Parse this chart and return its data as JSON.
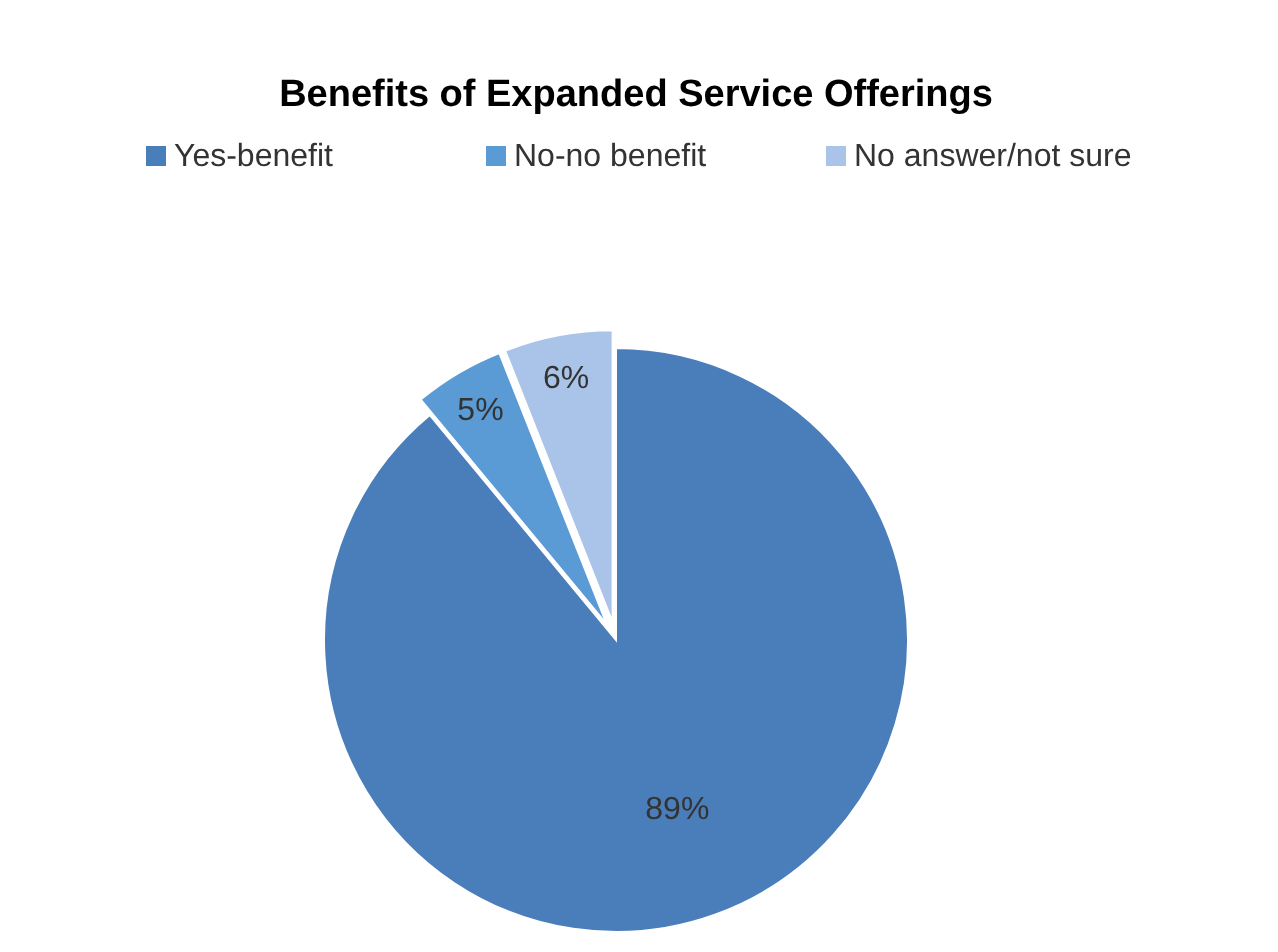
{
  "chart_data": {
    "type": "pie",
    "title": "Benefits of Expanded Service Offerings",
    "categories": [
      "Yes-benefit",
      "No-no benefit",
      "No answer/not sure"
    ],
    "values": [
      89,
      5,
      6
    ],
    "colors": [
      "#4a7ebb",
      "#5b9bd5",
      "#a9c4e8"
    ],
    "value_labels": [
      "89%",
      "5%",
      "6%"
    ],
    "legend": "top"
  }
}
